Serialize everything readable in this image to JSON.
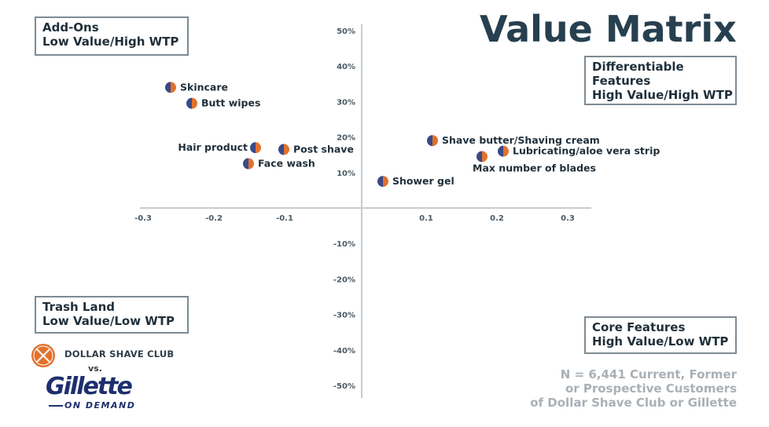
{
  "title": "Value Matrix",
  "quadrants": {
    "top_left": [
      "Add-Ons",
      "Low Value/High WTP"
    ],
    "top_right": [
      "Differentiable",
      "Features",
      "High Value/High WTP"
    ],
    "bottom_left": [
      "Trash Land",
      "Low Value/Low WTP"
    ],
    "bottom_right": [
      "Core Features",
      "High Value/Low WTP"
    ]
  },
  "note": [
    "N = 6,441 Current, Former",
    "or Prospective Customers",
    "of Dollar Shave Club or Gillette"
  ],
  "logos": {
    "dsc": "DOLLAR SHAVE CLUB",
    "vs": "vs.",
    "gillette": "Gillette",
    "gillette_sub": "ON DEMAND"
  },
  "colors": {
    "dsc": "#e2722c",
    "gillette": "#3a4a86",
    "axis": "#c8ccd0"
  },
  "chart_data": {
    "type": "scatter",
    "xlim": [
      -0.3,
      0.3
    ],
    "ylim": [
      -50,
      50
    ],
    "x_ticks": [
      -0.3,
      -0.2,
      -0.1,
      0.1,
      0.2,
      0.3
    ],
    "y_ticks": [
      50,
      40,
      30,
      20,
      10,
      -10,
      -20,
      -30,
      -40,
      -50
    ],
    "x_tick_labels": [
      "-0.3",
      "-0.2",
      "-0.1",
      "0.1",
      "0.2",
      "0.3"
    ],
    "y_tick_labels": [
      "50%",
      "40%",
      "30%",
      "20%",
      "10%",
      "-10%",
      "-20%",
      "-30%",
      "-40%",
      "-50%"
    ],
    "points": [
      {
        "label": "Skincare",
        "x": -0.27,
        "y": 34,
        "label_side": "right"
      },
      {
        "label": "Butt wipes",
        "x": -0.24,
        "y": 29.5,
        "label_side": "right"
      },
      {
        "label": "Hair product",
        "x": -0.15,
        "y": 17,
        "label_side": "left"
      },
      {
        "label": "Post shave",
        "x": -0.11,
        "y": 16.5,
        "label_side": "right"
      },
      {
        "label": "Face wash",
        "x": -0.16,
        "y": 12.5,
        "label_side": "right"
      },
      {
        "label": "Shave butter/Shaving cream",
        "x": 0.1,
        "y": 19,
        "label_side": "right"
      },
      {
        "label": "Lubricating/aloe vera strip",
        "x": 0.2,
        "y": 16,
        "label_side": "right"
      },
      {
        "label": "Max number of blades",
        "x": 0.17,
        "y": 14.5,
        "label_side": "below"
      },
      {
        "label": "Shower gel",
        "x": 0.03,
        "y": 7.5,
        "label_side": "right"
      }
    ]
  }
}
